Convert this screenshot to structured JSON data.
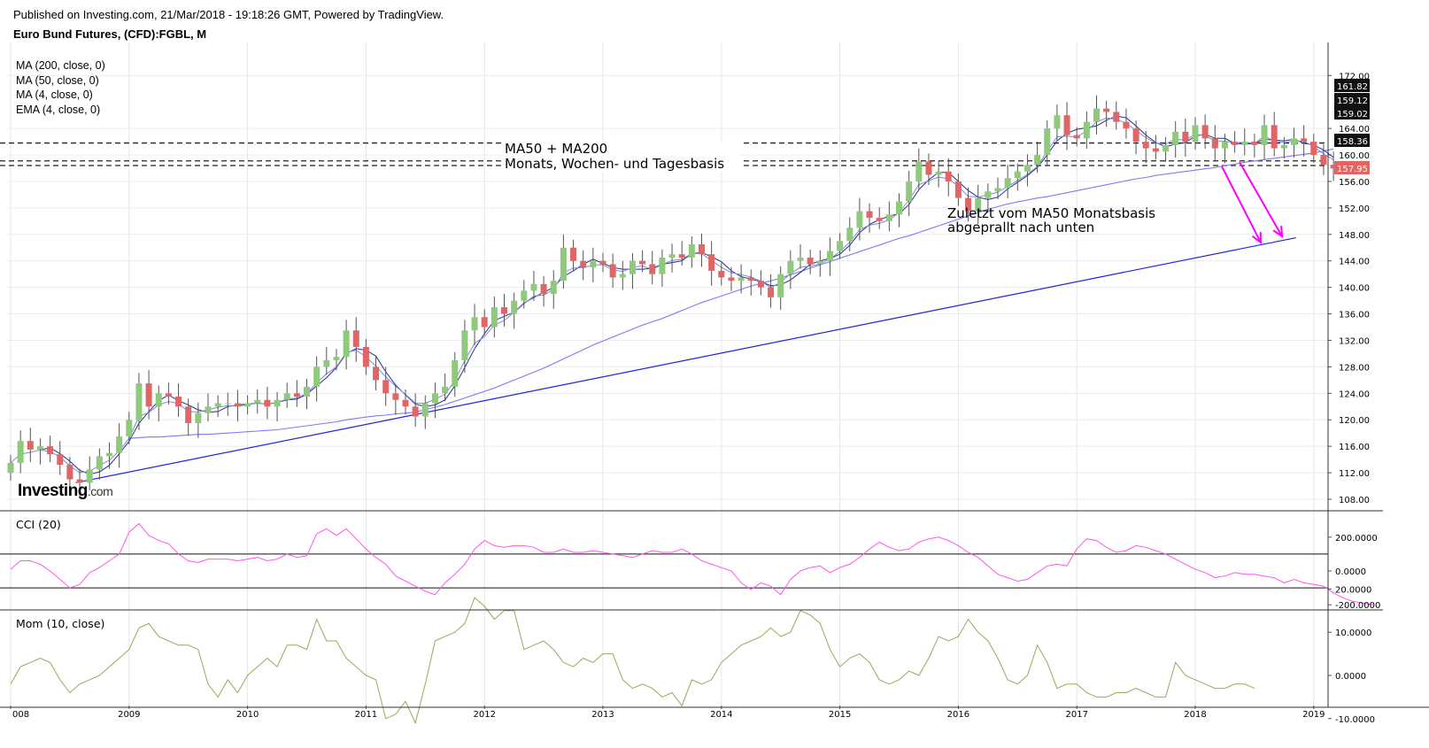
{
  "header": {
    "published": "Published on Investing.com, 21/Mar/2018 - 19:18:26 GMT, Powered by TradingView.",
    "symbol": "Euro Bund Futures, (CFD):FGBL, M"
  },
  "indicators": [
    "MA (200, close, 0)",
    "MA (50, close, 0)",
    "MA (4, close, 0)",
    "EMA (4, close, 0)"
  ],
  "logo": {
    "main": "Investing",
    "suffix": ".com"
  },
  "annotations": {
    "resistance_line1": "MA50 + MA200",
    "resistance_line2": "Monats, Wochen- und Tagesbasis",
    "bounce_line1": "Zuletzt vom MA50 Monatsbasis",
    "bounce_line2": "abgeprallt nach unten"
  },
  "colors": {
    "up": "#8fc97c",
    "down": "#e06666",
    "ma50": "#7b7bf7",
    "ma4": "#1f2f8f",
    "trend": "#2222dd",
    "cci": "#ff55ee",
    "mom": "#9fa55a",
    "arrow": "#ff00ff"
  },
  "chart_data": [
    {
      "type": "candlestick",
      "title": "Euro Bund Futures, (CFD):FGBL, M",
      "x_ticks": [
        "008",
        "2009",
        "2010",
        "2011",
        "2012",
        "2013",
        "2014",
        "2015",
        "2016",
        "2017",
        "2018",
        "2019"
      ],
      "y_ticks": [
        108,
        112,
        116,
        120,
        124,
        128,
        132,
        136,
        140,
        144,
        148,
        152,
        156,
        160,
        164,
        172
      ],
      "ylim": [
        105,
        174
      ],
      "price_labels": [
        {
          "value": "161.82",
          "style": "dark"
        },
        {
          "value": "159.12",
          "style": "dark"
        },
        {
          "value": "159.02",
          "style": "dark"
        },
        {
          "value": "158.36",
          "style": "dark"
        },
        {
          "value": "157.95",
          "style": "red"
        }
      ],
      "close": [
        113.5,
        116.8,
        115.5,
        116.0,
        114.8,
        113.2,
        111.0,
        110.5,
        112.5,
        114.5,
        115.0,
        117.5,
        120.0,
        125.5,
        122.0,
        124.0,
        123.5,
        122.0,
        119.5,
        121.0,
        122.0,
        122.5,
        122.5,
        122.0,
        122.5,
        123.0,
        122.0,
        123.0,
        124.0,
        123.5,
        125.0,
        128.0,
        129.0,
        129.5,
        133.5,
        131.0,
        128.0,
        126.0,
        124.0,
        123.0,
        122.0,
        120.5,
        122.5,
        124.0,
        125.0,
        129.0,
        133.5,
        135.5,
        134.0,
        137.0,
        136.0,
        138.0,
        139.5,
        140.5,
        139.0,
        141.0,
        146.0,
        144.0,
        143.0,
        144.0,
        143.5,
        141.5,
        142.0,
        144.0,
        143.5,
        142.0,
        144.5,
        145.0,
        144.5,
        146.5,
        145.0,
        142.5,
        141.5,
        141.0,
        141.5,
        141.0,
        140.0,
        138.5,
        142.0,
        144.0,
        144.5,
        143.5,
        144.0,
        145.5,
        147.0,
        149.0,
        151.5,
        150.5,
        150.0,
        151.0,
        153.0,
        156.0,
        159.0,
        157.0,
        157.5,
        156.0,
        153.5,
        151.5,
        153.5,
        154.5,
        155.0,
        156.5,
        157.5,
        158.5,
        160.0,
        164.0,
        166.0,
        163.0,
        162.5,
        165.0,
        167.0,
        166.5,
        165.0,
        164.0,
        162.0,
        161.0,
        160.5,
        161.5,
        163.5,
        162.0,
        164.5,
        162.5,
        161.0,
        162.0,
        161.5,
        162.0,
        161.5,
        164.5,
        161.0,
        161.5,
        162.5,
        162.0,
        160.0,
        158.5,
        157.95
      ],
      "ma50": [
        null,
        null,
        null,
        null,
        null,
        null,
        null,
        null,
        null,
        null,
        null,
        null,
        117.2,
        117.3,
        117.4,
        117.4,
        117.5,
        117.6,
        117.7,
        117.8,
        117.8,
        117.9,
        118.0,
        118.1,
        118.2,
        118.3,
        118.4,
        118.5,
        118.7,
        118.9,
        119.1,
        119.3,
        119.5,
        119.7,
        120.0,
        120.2,
        120.4,
        120.6,
        120.7,
        120.9,
        121.0,
        121.2,
        121.5,
        121.9,
        122.3,
        122.8,
        123.3,
        123.8,
        124.3,
        124.8,
        125.4,
        126.0,
        126.6,
        127.2,
        127.8,
        128.5,
        129.2,
        129.9,
        130.6,
        131.3,
        131.9,
        132.5,
        133.1,
        133.7,
        134.3,
        134.8,
        135.3,
        135.9,
        136.5,
        137.1,
        137.7,
        138.2,
        138.7,
        139.2,
        139.7,
        140.2,
        140.6,
        141.0,
        141.4,
        141.9,
        142.4,
        142.9,
        143.4,
        143.9,
        144.4,
        144.9,
        145.4,
        145.9,
        146.4,
        146.9,
        147.4,
        147.8,
        148.3,
        148.8,
        149.3,
        149.8,
        150.3,
        150.8,
        151.3,
        151.8,
        152.2,
        152.6,
        152.9,
        153.2,
        153.5,
        153.7,
        154.0,
        154.3,
        154.6,
        154.9,
        155.2,
        155.5,
        155.8,
        156.1,
        156.4,
        156.6,
        156.9,
        157.1,
        157.3,
        157.5,
        157.7,
        157.9,
        158.1,
        158.4,
        158.6,
        158.9,
        159.1,
        159.3,
        159.5,
        159.7,
        159.9,
        160.1,
        160.3,
        160.6,
        160.9
      ],
      "trendline": {
        "from": [
          "2008-07",
          110.5
        ],
        "to": [
          "2018-11",
          147.5
        ]
      },
      "horizontal_levels": [
        161.8,
        159.1,
        158.4
      ],
      "ma_series_names": [
        "MA (200, close, 0)",
        "MA (50, close, 0)",
        "MA (4, close, 0)",
        "EMA (4, close, 0)"
      ]
    },
    {
      "type": "line",
      "title": "CCI (20)",
      "y_ticks": [
        "200.0000",
        "0.0000",
        "-200.0000"
      ],
      "ylim": [
        -200,
        300
      ],
      "levels": [
        100,
        -100
      ],
      "values": [
        10,
        60,
        60,
        40,
        0,
        -50,
        -100,
        -80,
        -10,
        20,
        60,
        100,
        230,
        280,
        210,
        180,
        160,
        100,
        60,
        50,
        70,
        70,
        70,
        60,
        70,
        80,
        60,
        70,
        100,
        80,
        90,
        220,
        250,
        210,
        250,
        190,
        130,
        80,
        40,
        -30,
        -60,
        -90,
        -120,
        -140,
        -70,
        -20,
        40,
        130,
        180,
        150,
        140,
        150,
        150,
        140,
        110,
        110,
        130,
        110,
        110,
        120,
        110,
        100,
        90,
        80,
        100,
        120,
        110,
        110,
        130,
        100,
        60,
        40,
        20,
        0,
        -70,
        -110,
        -70,
        -90,
        -140,
        -50,
        0,
        20,
        30,
        -10,
        20,
        40,
        80,
        130,
        170,
        140,
        120,
        130,
        170,
        190,
        200,
        180,
        150,
        110,
        80,
        30,
        -20,
        -40,
        -60,
        -50,
        -10,
        30,
        40,
        30,
        130,
        190,
        180,
        140,
        110,
        120,
        150,
        140,
        120,
        100,
        70,
        40,
        10,
        -10,
        -40,
        -30,
        -10,
        -20,
        -20,
        -30,
        -40,
        -70,
        -50,
        -70,
        -80,
        -90,
        -130,
        -160,
        -180,
        -190,
        -200
      ]
    },
    {
      "type": "line",
      "title": "Mom (10, close)",
      "y_ticks": [
        "20.0000",
        "10.0000",
        "0.0000",
        "-10.0000"
      ],
      "ylim": [
        -12,
        21
      ],
      "values": [
        -2,
        2,
        3,
        4,
        3,
        -1,
        -4,
        -2,
        -1,
        0,
        2,
        4,
        6,
        11,
        12,
        9,
        8,
        7,
        7,
        6,
        -2,
        -5,
        -1,
        -4,
        0,
        2,
        4,
        2,
        7,
        7,
        6,
        13,
        8,
        8,
        4,
        2,
        0,
        -1,
        -10,
        -9,
        -6,
        -11,
        -2,
        8,
        9,
        10,
        12,
        18,
        16,
        13,
        15,
        15,
        6,
        7,
        8,
        6,
        3,
        2,
        4,
        3,
        5,
        5,
        -1,
        -3,
        -2,
        -3,
        -5,
        -4,
        -7,
        -1,
        -2,
        -1,
        3,
        5,
        7,
        8,
        9,
        11,
        9,
        10,
        15,
        14,
        12,
        6,
        2,
        4,
        5,
        3,
        -1,
        -2,
        -1,
        1,
        0,
        4,
        9,
        8,
        9,
        13,
        10,
        8,
        4,
        -1,
        -2,
        0,
        7,
        3,
        -3,
        -2,
        -2,
        -4,
        -5,
        -5,
        -4,
        -4,
        -3,
        -4,
        -5,
        -5,
        3,
        0,
        -1,
        -2,
        -3,
        -3,
        -2,
        -2,
        -3
      ],
      "x_ticks": [
        "008",
        "2009",
        "2010",
        "2011",
        "2012",
        "2013",
        "2014",
        "2015",
        "2016",
        "2017",
        "2018",
        "2019"
      ]
    }
  ]
}
